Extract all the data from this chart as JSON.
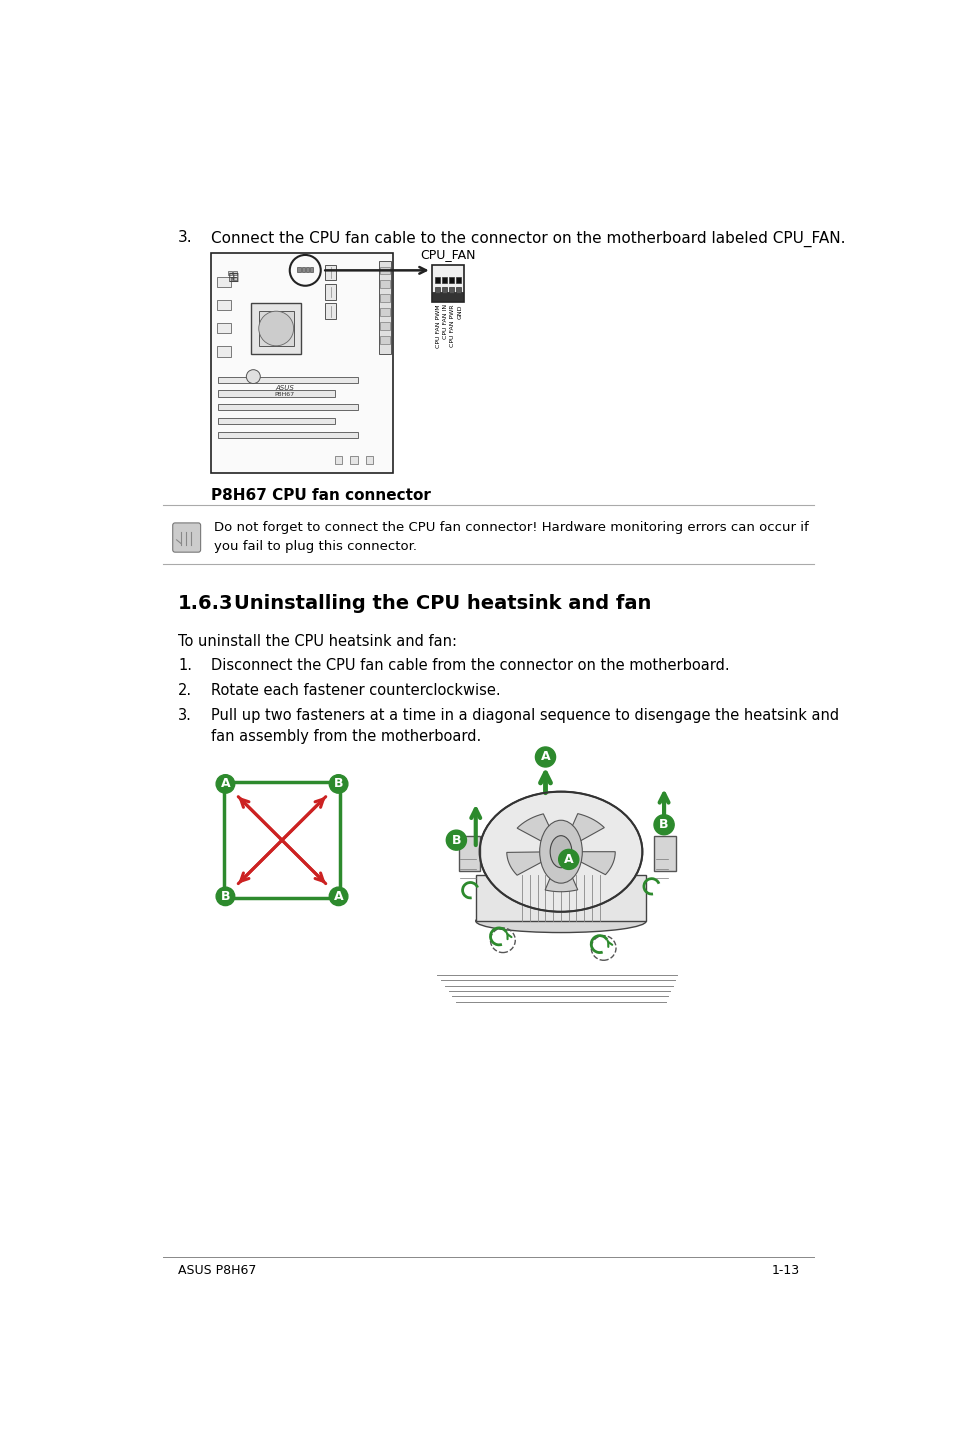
{
  "background_color": "#ffffff",
  "text_color": "#000000",
  "green_color": "#2d8a2d",
  "red_color": "#cc2222",
  "step3_number": "3.",
  "step3_text": "Connect the CPU fan cable to the connector on the motherboard labeled CPU_FAN.",
  "cpu_fan_label": "CPU_FAN",
  "connector_pins": [
    "CPU FAN PWM",
    "CPU FAN IN",
    "CPU FAN PWR",
    "GND"
  ],
  "board_caption": "P8H67 CPU fan connector",
  "note_text": "Do not forget to connect the CPU fan connector! Hardware monitoring errors can occur if\nyou fail to plug this connector.",
  "section_number": "1.6.3",
  "section_title": "Uninstalling the CPU heatsink and fan",
  "intro_text": "To uninstall the CPU heatsink and fan:",
  "steps": [
    "Disconnect the CPU fan cable from the connector on the motherboard.",
    "Rotate each fastener counterclockwise.",
    "Pull up two fasteners at a time in a diagonal sequence to disengage the heatsink and\nfan assembly from the motherboard."
  ],
  "footer_left": "ASUS P8H67",
  "footer_right": "1-13"
}
